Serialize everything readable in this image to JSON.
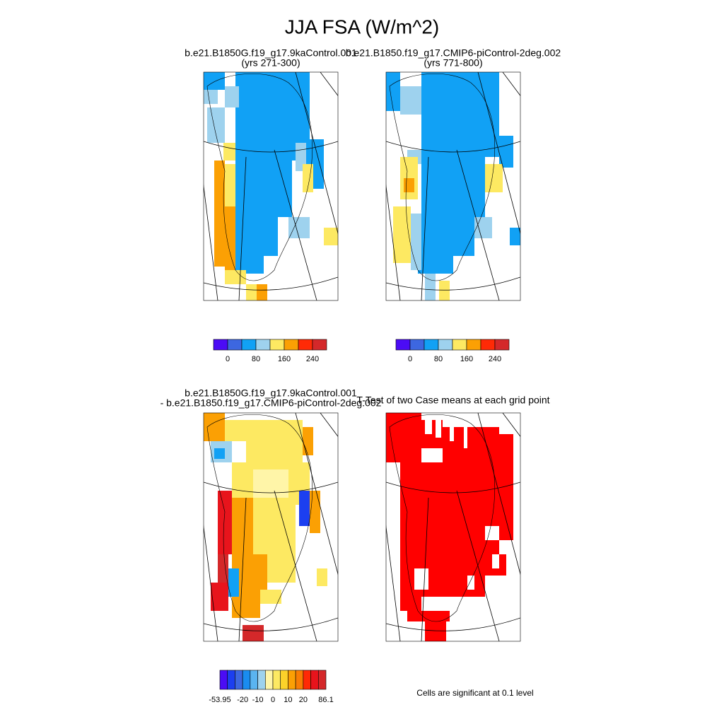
{
  "title": "JJA FSA (W/m^2)",
  "panels": [
    {
      "title": [
        "b.e21.B1850G.f19_g17.9kaControl.001",
        "(yrs 271-300)"
      ]
    },
    {
      "title": [
        "b.e21.B1850.f19_g17.CMIP6-piControl-2deg.002",
        "(yrs 771-800)"
      ]
    },
    {
      "title": [
        "b.e21.B1850G.f19_g17.9kaControl.001",
        "- b.e21.B1850.f19_g17.CMIP6-piControl-2deg.002"
      ]
    },
    {
      "title": [
        "T-Test of two Case means at each grid point"
      ]
    }
  ],
  "colorbars": [
    {
      "colors": [
        "#4b0cf5",
        "#3d67e0",
        "#11a1f5",
        "#9ed2ee",
        "#fde962",
        "#fba004",
        "#ff2a06",
        "#d4282a"
      ],
      "labels": [
        "0",
        "80",
        "160",
        "240"
      ]
    },
    {
      "colors": [
        "#4b0cf5",
        "#3d67e0",
        "#11a1f5",
        "#9ed2ee",
        "#fde962",
        "#fba004",
        "#ff2a06",
        "#d4282a"
      ],
      "labels": [
        "0",
        "80",
        "160",
        "240"
      ]
    },
    {
      "colors": [
        "#4b0cf5",
        "#1c3ff0",
        "#3d67e0",
        "#1a8cf0",
        "#5ab4f0",
        "#9ed2ee",
        "#fff5a8",
        "#fde962",
        "#fcd22a",
        "#fba004",
        "#f97d04",
        "#ff2a06",
        "#e8141c",
        "#d4282a"
      ],
      "labels": [
        "-53.95",
        "-20",
        "-10",
        "0",
        "10",
        "20",
        "86.1"
      ]
    }
  ],
  "note": "Cells are significant at 0.1 level"
}
